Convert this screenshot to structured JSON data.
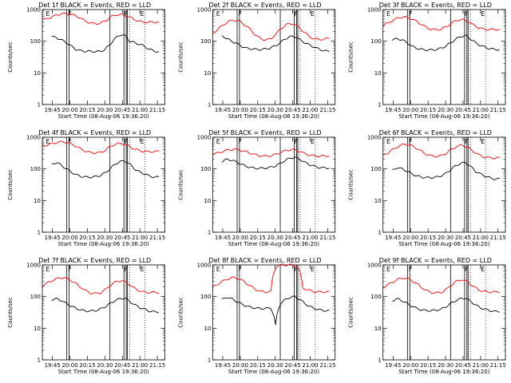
{
  "chart_data": {
    "type": "line",
    "panels": [
      {
        "title": "Det  1f  BLACK = Events,  RED = LLD",
        "ylabel": "Counts/sec",
        "xlabel": "Start Time (08-Aug-06 19:36:20)",
        "xtick_labels": [
          "19:45",
          "20:00",
          "20:15",
          "20:30",
          "20:45",
          "21:00",
          "21:15"
        ],
        "ytick_labels": [
          "1",
          "10",
          "100",
          "1000"
        ],
        "markers": [
          "E",
          "F",
          "F",
          "E"
        ],
        "red_y": [
          470,
          520,
          600,
          700,
          750,
          730,
          660,
          560,
          440,
          380,
          360,
          370,
          450,
          600,
          690,
          690,
          620,
          520,
          440,
          400,
          400,
          400,
          400
        ],
        "black_y": [
          140,
          130,
          110,
          90,
          70,
          55,
          50,
          48,
          48,
          47,
          48,
          55,
          80,
          120,
          160,
          150,
          100,
          90,
          80,
          70,
          55,
          50,
          45
        ]
      },
      {
        "title": "Det  2f  BLACK = Events,  RED = LLD",
        "ylabel": "Counts/sec",
        "xlabel": "Start Time (08-Aug-06 19:36:20)",
        "xtick_labels": [
          "19:45",
          "20:00",
          "20:15",
          "20:30",
          "20:45",
          "21:00",
          "21:15"
        ],
        "ytick_labels": [
          "1",
          "10",
          "100",
          "1000"
        ],
        "markers": [
          "E",
          "F",
          "F",
          "E"
        ],
        "red_y": [
          170,
          240,
          330,
          420,
          470,
          430,
          330,
          240,
          160,
          120,
          110,
          120,
          170,
          260,
          340,
          360,
          300,
          210,
          150,
          120,
          115,
          115,
          125
        ],
        "black_y": [
          150,
          120,
          100,
          85,
          70,
          60,
          58,
          55,
          55,
          57,
          62,
          72,
          90,
          120,
          140,
          140,
          110,
          90,
          75,
          65,
          55,
          50,
          48
        ]
      },
      {
        "title": "Det  3f  BLACK = Events,  RED = LLD",
        "ylabel": "Counts/sec",
        "xlabel": "Start Time (08-Aug-06 19:36:20)",
        "xtick_labels": [
          "19:45",
          "20:00",
          "20:15",
          "20:30",
          "20:45",
          "21:00",
          "21:15"
        ],
        "ytick_labels": [
          "1",
          "10",
          "100",
          "1000"
        ],
        "markers": [
          "E",
          "F",
          "F",
          "E"
        ],
        "red_y": [
          310,
          380,
          470,
          560,
          580,
          540,
          450,
          360,
          280,
          240,
          230,
          240,
          290,
          380,
          470,
          480,
          420,
          330,
          270,
          240,
          235,
          235,
          240
        ],
        "black_y": [
          110,
          120,
          110,
          90,
          70,
          60,
          55,
          53,
          53,
          55,
          60,
          70,
          90,
          115,
          140,
          150,
          120,
          90,
          75,
          65,
          58,
          55,
          55
        ]
      },
      {
        "title": "Det  4f  BLACK = Events,  RED = LLD",
        "ylabel": "Counts/sec",
        "xlabel": "Start Time (08-Aug-06 19:36:20)",
        "xtick_labels": [
          "19:45",
          "20:00",
          "20:15",
          "20:30",
          "20:45",
          "21:00",
          "21:15"
        ],
        "ytick_labels": [
          "1",
          "10",
          "100",
          "1000"
        ],
        "markers": [
          "E",
          "F",
          "F",
          "E"
        ],
        "red_y": [
          520,
          580,
          640,
          700,
          720,
          660,
          560,
          450,
          370,
          330,
          320,
          330,
          400,
          530,
          620,
          640,
          560,
          450,
          390,
          360,
          350,
          350,
          360
        ],
        "black_y": [
          140,
          160,
          130,
          100,
          80,
          65,
          58,
          55,
          55,
          57,
          62,
          75,
          100,
          140,
          170,
          180,
          140,
          100,
          80,
          70,
          60,
          55,
          55
        ]
      },
      {
        "title": "Det  5f  BLACK = Events,  RED = LLD",
        "ylabel": "Counts/sec",
        "xlabel": "Start Time (08-Aug-06 19:36:20)",
        "xtick_labels": [
          "19:45",
          "20:00",
          "20:15",
          "20:30",
          "20:45",
          "21:00",
          "21:15"
        ],
        "ytick_labels": [
          "1",
          "10",
          "100",
          "1000"
        ],
        "markers": [
          "E",
          "F",
          "F",
          "E"
        ],
        "red_y": [
          290,
          320,
          360,
          400,
          420,
          400,
          360,
          320,
          280,
          260,
          255,
          260,
          290,
          340,
          390,
          410,
          380,
          320,
          280,
          260,
          255,
          255,
          260
        ],
        "black_y": [
          170,
          200,
          190,
          165,
          140,
          120,
          110,
          105,
          105,
          107,
          112,
          125,
          150,
          185,
          220,
          230,
          200,
          160,
          135,
          120,
          110,
          108,
          108
        ]
      },
      {
        "title": "Det  6f  BLACK = Events,  RED = LLD",
        "ylabel": "Counts/sec",
        "xlabel": "Start Time (08-Aug-06 19:36:20)",
        "xtick_labels": [
          "19:45",
          "20:00",
          "20:15",
          "20:30",
          "20:45",
          "21:00",
          "21:15"
        ],
        "ytick_labels": [
          "1",
          "10",
          "100",
          "1000"
        ],
        "markers": [
          "E",
          "F",
          "F",
          "E"
        ],
        "red_y": [
          260,
          330,
          420,
          520,
          600,
          570,
          480,
          380,
          300,
          260,
          250,
          260,
          320,
          420,
          520,
          560,
          480,
          360,
          280,
          240,
          225,
          220,
          220
        ],
        "black_y": [
          90,
          110,
          100,
          85,
          70,
          60,
          55,
          53,
          53,
          55,
          60,
          72,
          95,
          125,
          150,
          160,
          120,
          85,
          70,
          60,
          52,
          48,
          48
        ]
      },
      {
        "title": "Det  7f  BLACK = Events,  RED = LLD",
        "ylabel": "Counts/sec",
        "xlabel": "Start Time (08-Aug-06 19:36:20)",
        "xtick_labels": [
          "19:45",
          "20:00",
          "20:15",
          "20:30",
          "20:45",
          "21:00",
          "21:15"
        ],
        "ytick_labels": [
          "1",
          "10",
          "100",
          "1000"
        ],
        "markers": [
          "E",
          "F",
          "F",
          "E"
        ],
        "red_y": [
          220,
          270,
          330,
          380,
          400,
          350,
          280,
          210,
          160,
          130,
          125,
          130,
          170,
          240,
          300,
          320,
          270,
          200,
          160,
          140,
          135,
          135,
          135
        ],
        "black_y": [
          80,
          85,
          75,
          60,
          50,
          42,
          38,
          35,
          35,
          36,
          40,
          48,
          60,
          75,
          85,
          90,
          70,
          55,
          45,
          40,
          35,
          33,
          33
        ]
      },
      {
        "title": "Det  8f  BLACK = Events,  RED = LLD",
        "ylabel": "Counts/sec",
        "xlabel": "Start Time (08-Aug-06 19:36:20)",
        "xtick_labels": [
          "19:45",
          "20:00",
          "20:15",
          "20:30",
          "20:45",
          "21:00",
          "21:15"
        ],
        "ytick_labels": [
          "1",
          "10",
          "100",
          "1000"
        ],
        "markers": [
          "E",
          "F",
          "F",
          "E"
        ],
        "red_y": [
          200,
          250,
          310,
          370,
          400,
          360,
          290,
          220,
          170,
          145,
          140,
          145,
          900,
          1000,
          1000,
          1000,
          900,
          190,
          160,
          145,
          140,
          140,
          140
        ],
        "black_y": [
          80,
          95,
          85,
          70,
          58,
          50,
          46,
          43,
          42,
          42,
          44,
          12,
          60,
          80,
          95,
          100,
          80,
          60,
          48,
          42,
          38,
          36,
          35
        ]
      },
      {
        "title": "Det  9f  BLACK = Events,  RED = LLD",
        "ylabel": "Counts/sec",
        "xlabel": "Start Time (08-Aug-06 19:36:20)",
        "xtick_labels": [
          "19:45",
          "20:00",
          "20:15",
          "20:30",
          "20:45",
          "21:00",
          "21:15"
        ],
        "ytick_labels": [
          "1",
          "10",
          "100",
          "1000"
        ],
        "markers": [
          "E",
          "F",
          "F",
          "E"
        ],
        "red_y": [
          190,
          240,
          300,
          360,
          390,
          350,
          280,
          210,
          160,
          135,
          130,
          135,
          170,
          240,
          310,
          340,
          290,
          210,
          165,
          145,
          140,
          140,
          140
        ],
        "black_y": [
          75,
          85,
          75,
          60,
          50,
          42,
          38,
          36,
          36,
          37,
          40,
          48,
          60,
          75,
          85,
          90,
          72,
          55,
          45,
          40,
          36,
          34,
          34
        ]
      }
    ],
    "x_range_minutes": [
      0,
      105
    ],
    "y_scale": "log",
    "ylim": [
      1,
      1000
    ],
    "colors": {
      "lld": "#ff0000",
      "events": "#000000"
    }
  }
}
